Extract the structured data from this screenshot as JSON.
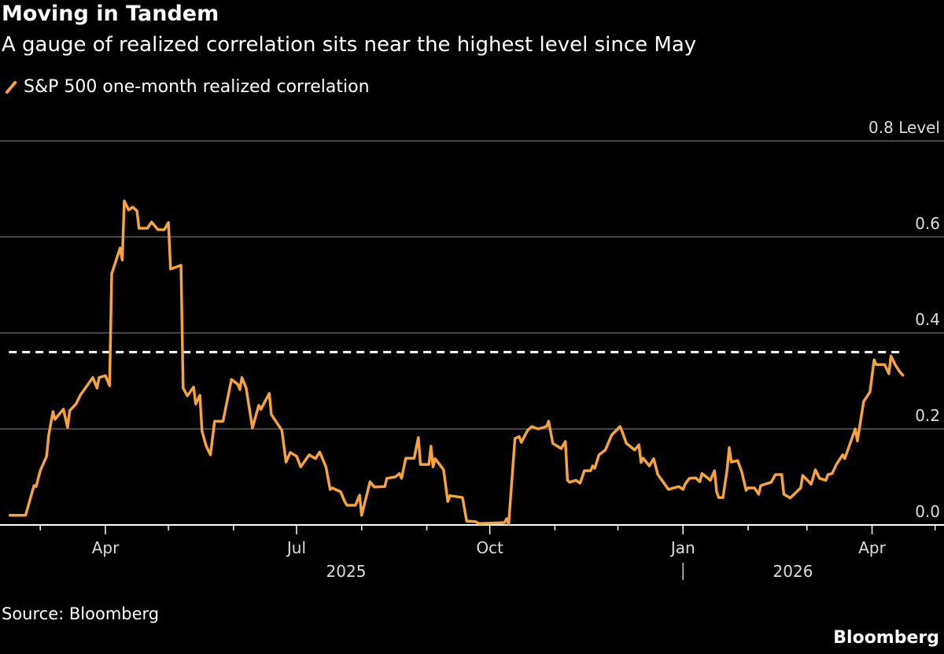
{
  "header": {
    "title": "Moving in Tandem",
    "subtitle": "A gauge of realized correlation sits near the highest level since May"
  },
  "footer": {
    "source": "Source: Bloomberg",
    "brand": "Bloomberg"
  },
  "colors": {
    "series": "#f5a33a",
    "reference_line": "#ffffff",
    "grid": "#5a5a5a",
    "background": "#000000"
  },
  "chart_data": {
    "type": "line",
    "title": "Moving in Tandem",
    "subtitle": "A gauge of realized correlation sits near the highest level since May",
    "ylabel": "Level",
    "ylim": [
      0,
      0.8
    ],
    "yticks": [
      "0.0",
      "0.2",
      "0.4",
      "0.6",
      "0.8"
    ],
    "ytick_top_label": "0.8 Level",
    "xticks": [
      {
        "date": "2025-04-01",
        "label": "Apr"
      },
      {
        "date": "2025-07-01",
        "label": "Jul"
      },
      {
        "date": "2025-10-01",
        "label": "Oct"
      },
      {
        "date": "2026-01-01",
        "label": "Jan"
      },
      {
        "date": "2026-04-01",
        "label": "Apr"
      }
    ],
    "year_labels": [
      {
        "label": "2025"
      },
      {
        "label": "2026"
      }
    ],
    "grid": true,
    "legend": "top-left",
    "reference_line": {
      "value": 0.36,
      "style": "dashed"
    },
    "series": [
      {
        "name": "S&P 500 one-month realized correlation",
        "x": [
          "2025-02-14",
          "2025-02-22",
          "2025-02-26",
          "2025-02-27",
          "2025-03-01",
          "2025-03-04",
          "2025-03-05",
          "2025-03-07",
          "2025-03-08",
          "2025-03-12",
          "2025-03-14",
          "2025-03-15",
          "2025-03-18",
          "2025-03-20",
          "2025-03-26",
          "2025-03-28",
          "2025-03-29",
          "2025-04-01",
          "2025-04-03",
          "2025-04-04",
          "2025-04-08",
          "2025-04-09",
          "2025-04-10",
          "2025-04-12",
          "2025-04-14",
          "2025-04-16",
          "2025-04-17",
          "2025-04-21",
          "2025-04-23",
          "2025-04-26",
          "2025-04-29",
          "2025-05-01",
          "2025-05-02",
          "2025-05-07",
          "2025-05-08",
          "2025-05-10",
          "2025-05-13",
          "2025-05-14",
          "2025-05-16",
          "2025-05-17",
          "2025-05-19",
          "2025-05-21",
          "2025-05-23",
          "2025-05-27",
          "2025-05-31",
          "2025-06-03",
          "2025-06-04",
          "2025-06-05",
          "2025-06-07",
          "2025-06-10",
          "2025-06-13",
          "2025-06-14",
          "2025-06-18",
          "2025-06-19",
          "2025-06-24",
          "2025-06-26",
          "2025-06-28",
          "2025-07-01",
          "2025-07-03",
          "2025-07-07",
          "2025-07-10",
          "2025-07-12",
          "2025-07-15",
          "2025-07-17",
          "2025-07-18",
          "2025-07-22",
          "2025-07-24",
          "2025-07-25",
          "2025-07-29",
          "2025-07-31",
          "2025-08-01",
          "2025-08-05",
          "2025-08-07",
          "2025-08-12",
          "2025-08-13",
          "2025-08-17",
          "2025-08-19",
          "2025-08-20",
          "2025-08-22",
          "2025-08-26",
          "2025-08-28",
          "2025-08-29",
          "2025-09-02",
          "2025-09-03",
          "2025-09-04",
          "2025-09-05",
          "2025-09-09",
          "2025-09-11",
          "2025-09-12",
          "2025-09-18",
          "2025-09-20",
          "2025-09-24",
          "2025-09-26",
          "2025-10-08",
          "2025-10-09",
          "2025-10-10",
          "2025-10-13",
          "2025-10-15",
          "2025-10-16",
          "2025-10-19",
          "2025-10-21",
          "2025-10-24",
          "2025-10-28",
          "2025-10-29",
          "2025-10-31",
          "2025-11-04",
          "2025-11-06",
          "2025-11-07",
          "2025-11-08",
          "2025-11-11",
          "2025-11-13",
          "2025-11-15",
          "2025-11-18",
          "2025-11-19",
          "2025-11-20",
          "2025-11-22",
          "2025-11-25",
          "2025-11-28",
          "2025-12-02",
          "2025-12-03",
          "2025-12-05",
          "2025-12-09",
          "2025-12-11",
          "2025-12-12",
          "2025-12-13",
          "2025-12-16",
          "2025-12-18",
          "2025-12-20",
          "2025-12-22",
          "2025-12-25",
          "2025-12-30",
          "2026-01-01",
          "2026-01-02",
          "2026-01-04",
          "2026-01-07",
          "2026-01-09",
          "2026-01-10",
          "2026-01-13",
          "2026-01-14",
          "2026-01-16",
          "2026-01-17",
          "2026-01-18",
          "2026-01-20",
          "2026-01-22",
          "2026-01-23",
          "2026-01-24",
          "2026-01-27",
          "2026-01-29",
          "2026-01-31",
          "2026-02-01",
          "2026-02-04",
          "2026-02-06",
          "2026-02-07",
          "2026-02-12",
          "2026-02-14",
          "2026-02-17",
          "2026-02-18",
          "2026-02-21",
          "2026-02-26",
          "2026-02-27",
          "2026-03-03",
          "2026-03-05",
          "2026-03-07",
          "2026-03-10",
          "2026-03-11",
          "2026-03-13",
          "2026-03-15",
          "2026-03-18",
          "2026-03-19",
          "2026-03-24",
          "2026-03-25",
          "2026-03-28",
          "2026-03-31",
          "2026-04-02",
          "2026-04-03",
          "2026-04-07",
          "2026-04-09",
          "2026-04-10",
          "2026-04-12",
          "2026-04-14",
          "2026-04-16"
        ],
        "values": [
          0.02,
          0.02,
          0.082,
          0.08,
          0.113,
          0.143,
          0.187,
          0.236,
          0.22,
          0.241,
          0.203,
          0.238,
          0.252,
          0.27,
          0.307,
          0.285,
          0.307,
          0.311,
          0.29,
          0.523,
          0.577,
          0.552,
          0.675,
          0.656,
          0.662,
          0.654,
          0.618,
          0.618,
          0.631,
          0.615,
          0.615,
          0.63,
          0.533,
          0.541,
          0.285,
          0.269,
          0.287,
          0.252,
          0.27,
          0.195,
          0.164,
          0.146,
          0.216,
          0.216,
          0.303,
          0.293,
          0.282,
          0.307,
          0.285,
          0.202,
          0.249,
          0.241,
          0.274,
          0.23,
          0.197,
          0.131,
          0.151,
          0.143,
          0.121,
          0.146,
          0.138,
          0.152,
          0.121,
          0.074,
          0.077,
          0.069,
          0.048,
          0.041,
          0.041,
          0.062,
          0.02,
          0.09,
          0.079,
          0.08,
          0.097,
          0.1,
          0.107,
          0.097,
          0.139,
          0.139,
          0.182,
          0.126,
          0.126,
          0.164,
          0.121,
          0.138,
          0.115,
          0.049,
          0.061,
          0.057,
          0.008,
          0.007,
          0.003,
          0.005,
          0.013,
          0.002,
          0.18,
          0.184,
          0.172,
          0.197,
          0.205,
          0.2,
          0.205,
          0.216,
          0.17,
          0.159,
          0.174,
          0.093,
          0.089,
          0.093,
          0.087,
          0.113,
          0.113,
          0.123,
          0.118,
          0.146,
          0.156,
          0.187,
          0.205,
          0.195,
          0.17,
          0.156,
          0.167,
          0.13,
          0.139,
          0.123,
          0.138,
          0.105,
          0.093,
          0.074,
          0.08,
          0.074,
          0.085,
          0.097,
          0.098,
          0.09,
          0.107,
          0.097,
          0.093,
          0.113,
          0.069,
          0.057,
          0.057,
          0.115,
          0.161,
          0.131,
          0.134,
          0.11,
          0.072,
          0.077,
          0.077,
          0.064,
          0.082,
          0.089,
          0.105,
          0.105,
          0.064,
          0.056,
          0.077,
          0.103,
          0.085,
          0.115,
          0.097,
          0.093,
          0.105,
          0.107,
          0.126,
          0.146,
          0.138,
          0.2,
          0.175,
          0.257,
          0.277,
          0.344,
          0.334,
          0.334,
          0.315,
          0.352,
          0.334,
          0.32,
          0.31
        ]
      }
    ]
  }
}
